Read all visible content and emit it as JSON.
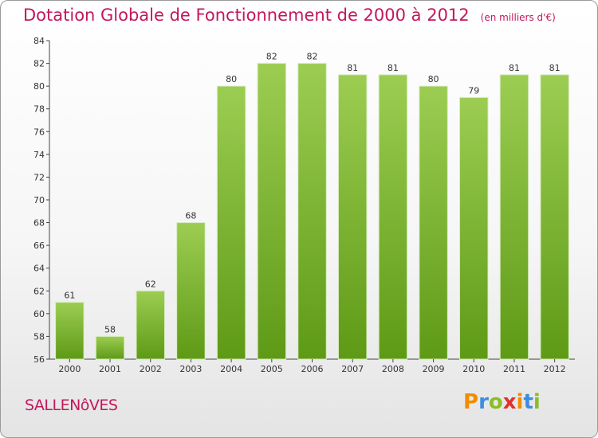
{
  "chart_data": {
    "type": "bar",
    "title": "Dotation Globale de Fonctionnement de 2000 à 2012",
    "subtitle": "(en milliers d'€)",
    "categories": [
      "2000",
      "2001",
      "2002",
      "2003",
      "2004",
      "2005",
      "2006",
      "2007",
      "2008",
      "2009",
      "2010",
      "2011",
      "2012"
    ],
    "values": [
      61,
      58,
      62,
      68,
      80,
      82,
      82,
      81,
      81,
      80,
      79,
      81,
      81
    ],
    "ylim": [
      56,
      84
    ],
    "yticks": [
      56,
      58,
      60,
      62,
      64,
      66,
      68,
      70,
      72,
      74,
      76,
      78,
      80,
      82,
      84
    ],
    "grid": false,
    "bar_color": "#7cb82f",
    "xlabel": "",
    "ylabel": ""
  },
  "commune": "SALLENôVES",
  "logo": {
    "letters": [
      "P",
      "r",
      "o",
      "x",
      "i",
      "t",
      "i"
    ],
    "colors": [
      "#f28c00",
      "#3c8dde",
      "#8bbd24",
      "#e4302b",
      "#f28c00",
      "#3c8dde",
      "#8bbd24"
    ]
  },
  "colors": {
    "title": "#c2185b",
    "bar": "#7cb82f",
    "axis": "#333333"
  }
}
